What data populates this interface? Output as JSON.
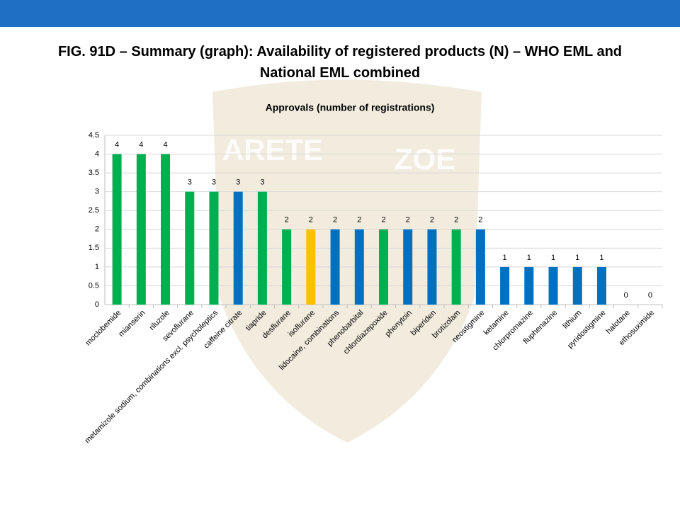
{
  "page_title": "FIG. 91D – Summary (graph): Availability of registered products (N) – WHO EML and National EML combined",
  "watermark": [
    "ARETE",
    "ZOE"
  ],
  "chart_data": {
    "type": "bar",
    "title": "Approvals (number of registrations)",
    "categories": [
      "moclobemide",
      "mianserin",
      "riluzole",
      "sevoflurane",
      "metamizole sodium, combinations excl. psycholeptics",
      "caffeine citrate",
      "tiapride",
      "desflurane",
      "isoflurane",
      "lidocaine, combinations",
      "phenobarbital",
      "chlordiazepoxide",
      "phenytoin",
      "biperiden",
      "brotizolam",
      "neostigmine",
      "ketamine",
      "chlorpromazine",
      "fluphenazine",
      "lithium",
      "pyridostigmine",
      "halotane",
      "ethosuximide"
    ],
    "values": [
      4,
      4,
      4,
      3,
      3,
      3,
      3,
      2,
      2,
      2,
      2,
      2,
      2,
      2,
      2,
      2,
      1,
      1,
      1,
      1,
      1,
      0,
      0
    ],
    "colors": [
      "#00b050",
      "#00b050",
      "#00b050",
      "#00b050",
      "#00b050",
      "#0070c0",
      "#00b050",
      "#00b050",
      "#ffc000",
      "#0070c0",
      "#0070c0",
      "#00b050",
      "#0070c0",
      "#0070c0",
      "#00b050",
      "#0070c0",
      "#0070c0",
      "#0070c0",
      "#0070c0",
      "#0070c0",
      "#0070c0",
      "#0070c0",
      "#0070c0"
    ],
    "ylim": [
      0,
      4.5
    ],
    "yticks": [
      0,
      0.5,
      1,
      1.5,
      2,
      2.5,
      3,
      3.5,
      4,
      4.5
    ],
    "grid": true
  }
}
